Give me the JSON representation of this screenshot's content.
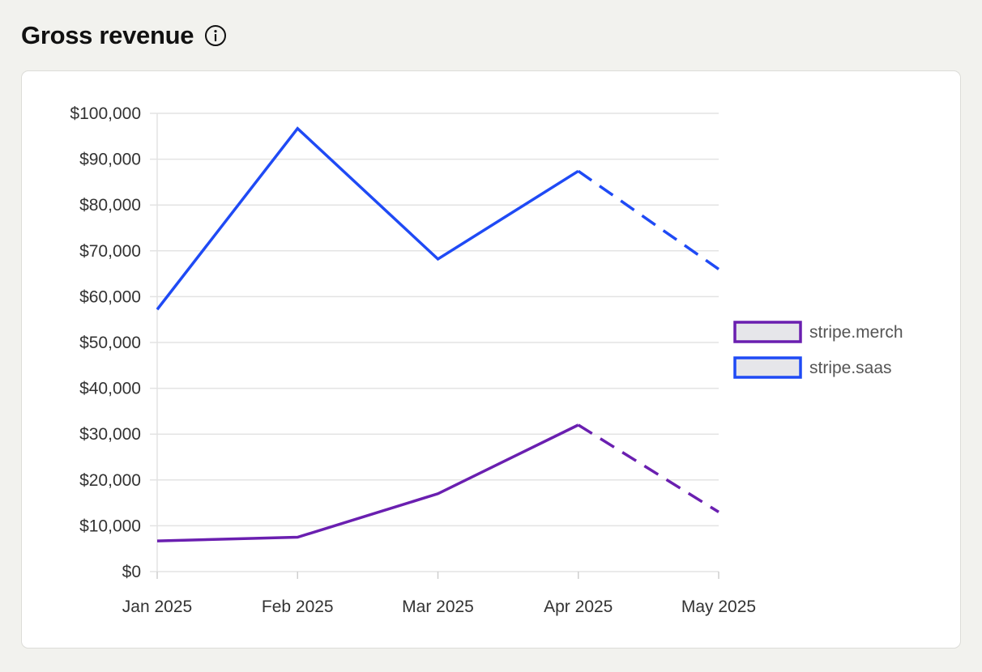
{
  "header": {
    "title": "Gross revenue",
    "info_icon": "info-circle-icon"
  },
  "colors": {
    "merch": "#6a1fb0",
    "saas": "#1f4af5",
    "grid": "#e3e3e3",
    "legend_fill": "#e6e6ea"
  },
  "chart_data": {
    "type": "line",
    "categories": [
      "Jan 2025",
      "Feb 2025",
      "Mar 2025",
      "Apr 2025",
      "May 2025"
    ],
    "ylim": [
      0,
      100000
    ],
    "yticks": [
      0,
      10000,
      20000,
      30000,
      40000,
      50000,
      60000,
      70000,
      80000,
      90000,
      100000
    ],
    "ytick_labels": [
      "$0",
      "$10,000",
      "$20,000",
      "$30,000",
      "$40,000",
      "$50,000",
      "$60,000",
      "$70,000",
      "$80,000",
      "$90,000",
      "$100,000"
    ],
    "grid": true,
    "legend_position": "right",
    "dashed_from_index": 3,
    "series": [
      {
        "name": "stripe.merch",
        "color": "#6a1fb0",
        "values": [
          6700,
          7500,
          17000,
          32000,
          13000
        ]
      },
      {
        "name": "stripe.saas",
        "color": "#1f4af5",
        "values": [
          57200,
          96700,
          68200,
          87400,
          66000
        ]
      }
    ]
  }
}
